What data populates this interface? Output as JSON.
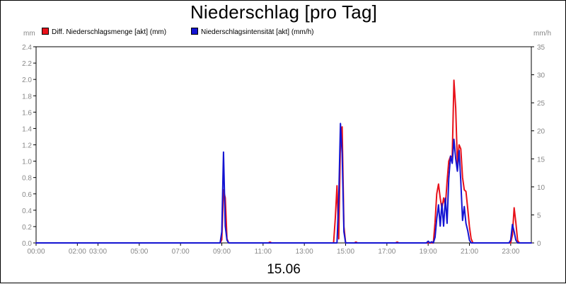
{
  "title": "Niederschlag [pro Tag]",
  "date_label": "15.06",
  "units": {
    "left": "mm",
    "right": "mm/h"
  },
  "legend": [
    {
      "label": "Diff. Niederschlagsmenge [akt] (mm)",
      "color": "#e8111a"
    },
    {
      "label": "Niederschlagsintensität [akt] (mm/h)",
      "color": "#1414d2"
    }
  ],
  "chart_data": {
    "type": "line",
    "title": "Niederschlag [pro Tag]",
    "xlabel": "15.06",
    "x_ticks": [
      "00:00",
      "02:00",
      "03:00",
      "05:00",
      "07:00",
      "09:00",
      "11:00",
      "13:00",
      "15:00",
      "17:00",
      "19:00",
      "21:00",
      "23:00"
    ],
    "y_left": {
      "unit": "mm",
      "ylim": [
        0,
        2.4
      ],
      "ticks": [
        "0.0",
        "0.2",
        "0.4",
        "0.6",
        "0.8",
        "1.0",
        "1.2",
        "1.4",
        "1.6",
        "1.8",
        "2.0",
        "2.2",
        "2.4"
      ]
    },
    "y_right": {
      "unit": "mm/h",
      "ylim": [
        0,
        35
      ],
      "ticks": [
        "0",
        "5",
        "10",
        "15",
        "20",
        "25",
        "30",
        "35"
      ]
    },
    "grid": false,
    "legend_position": "top-left",
    "series": [
      {
        "name": "Diff. Niederschlagsmenge [akt] (mm)",
        "axis": "left",
        "color": "#e8111a",
        "points": [
          [
            "00:00",
            0
          ],
          [
            "08:55",
            0
          ],
          [
            "09:00",
            0.04
          ],
          [
            "09:05",
            0.65
          ],
          [
            "09:10",
            0.55
          ],
          [
            "09:15",
            0.05
          ],
          [
            "09:20",
            0
          ],
          [
            "11:15",
            0
          ],
          [
            "11:20",
            0.01
          ],
          [
            "11:25",
            0
          ],
          [
            "14:25",
            0
          ],
          [
            "14:30",
            0.3
          ],
          [
            "14:35",
            0.7
          ],
          [
            "14:40",
            0.05
          ],
          [
            "14:45",
            1.25
          ],
          [
            "14:50",
            1.42
          ],
          [
            "14:55",
            0.2
          ],
          [
            "15:00",
            0
          ],
          [
            "15:25",
            0
          ],
          [
            "15:30",
            0.01
          ],
          [
            "15:35",
            0
          ],
          [
            "17:25",
            0
          ],
          [
            "17:30",
            0.01
          ],
          [
            "17:35",
            0
          ],
          [
            "19:15",
            0
          ],
          [
            "19:20",
            0.25
          ],
          [
            "19:25",
            0.6
          ],
          [
            "19:30",
            0.72
          ],
          [
            "19:35",
            0.55
          ],
          [
            "19:40",
            0.42
          ],
          [
            "19:45",
            0.55
          ],
          [
            "19:50",
            0.45
          ],
          [
            "19:55",
            0.75
          ],
          [
            "20:00",
            1.0
          ],
          [
            "20:05",
            1.06
          ],
          [
            "20:10",
            1.05
          ],
          [
            "20:15",
            1.99
          ],
          [
            "20:20",
            1.65
          ],
          [
            "20:25",
            0.97
          ],
          [
            "20:30",
            1.2
          ],
          [
            "20:35",
            1.15
          ],
          [
            "20:40",
            0.8
          ],
          [
            "20:45",
            0.65
          ],
          [
            "20:50",
            0.63
          ],
          [
            "20:55",
            0.42
          ],
          [
            "21:00",
            0.2
          ],
          [
            "21:05",
            0.05
          ],
          [
            "21:10",
            0
          ],
          [
            "23:00",
            0
          ],
          [
            "23:05",
            0.1
          ],
          [
            "23:10",
            0.43
          ],
          [
            "23:15",
            0.25
          ],
          [
            "23:20",
            0.03
          ],
          [
            "23:25",
            0
          ],
          [
            "24:00",
            0
          ]
        ]
      },
      {
        "name": "Niederschlagsintensität [akt] (mm/h)",
        "axis": "right",
        "color": "#1414d2",
        "points": [
          [
            "00:00",
            0
          ],
          [
            "08:55",
            0
          ],
          [
            "09:00",
            2.0
          ],
          [
            "09:05",
            16.2
          ],
          [
            "09:10",
            3.0
          ],
          [
            "09:15",
            0.5
          ],
          [
            "09:20",
            0
          ],
          [
            "14:35",
            0
          ],
          [
            "14:40",
            8.0
          ],
          [
            "14:45",
            21.3
          ],
          [
            "14:50",
            16.0
          ],
          [
            "14:55",
            2.0
          ],
          [
            "15:00",
            0
          ],
          [
            "18:55",
            0
          ],
          [
            "19:00",
            0.3
          ],
          [
            "19:05",
            0
          ],
          [
            "19:10",
            0.2
          ],
          [
            "19:15",
            0
          ],
          [
            "19:20",
            1.0
          ],
          [
            "19:25",
            4.3
          ],
          [
            "19:30",
            6.8
          ],
          [
            "19:35",
            3.0
          ],
          [
            "19:40",
            7.0
          ],
          [
            "19:45",
            3.0
          ],
          [
            "19:50",
            8.0
          ],
          [
            "19:55",
            3.5
          ],
          [
            "20:00",
            11.5
          ],
          [
            "20:05",
            15.5
          ],
          [
            "20:10",
            14.2
          ],
          [
            "20:15",
            18.5
          ],
          [
            "20:20",
            15.0
          ],
          [
            "20:25",
            12.8
          ],
          [
            "20:30",
            16.5
          ],
          [
            "20:35",
            11.0
          ],
          [
            "20:40",
            4.0
          ],
          [
            "20:45",
            6.5
          ],
          [
            "20:50",
            3.5
          ],
          [
            "20:55",
            2.2
          ],
          [
            "21:00",
            0.5
          ],
          [
            "21:05",
            0
          ],
          [
            "22:55",
            0
          ],
          [
            "23:00",
            0.5
          ],
          [
            "23:05",
            3.3
          ],
          [
            "23:10",
            2.0
          ],
          [
            "23:15",
            0.5
          ],
          [
            "23:20",
            0
          ],
          [
            "24:00",
            0
          ]
        ]
      }
    ]
  }
}
